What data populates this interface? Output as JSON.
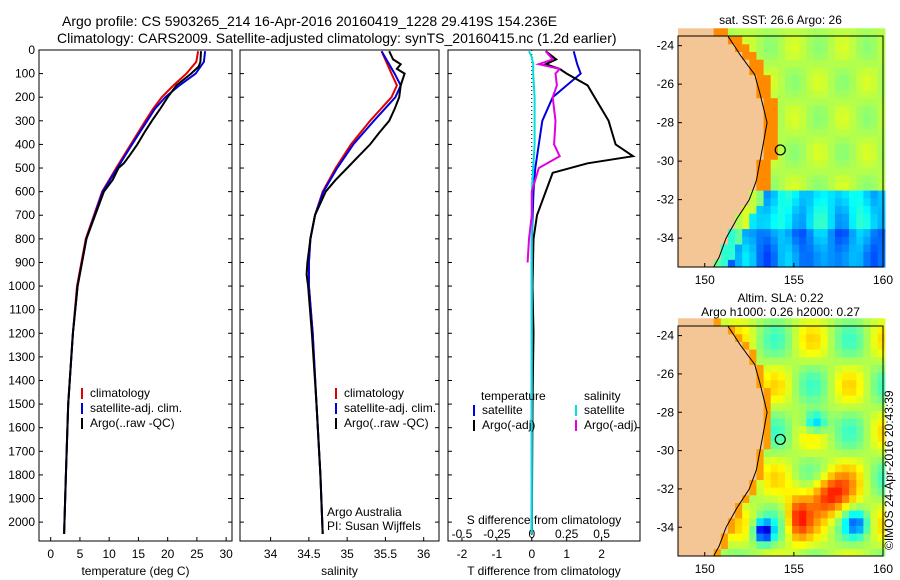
{
  "title": {
    "line1": "Argo profile: CS 5903265_214 16-Apr-2016 20160419_1228 29.419S 154.236E",
    "line2": "Climatology: CARS2009. Satellite-adjusted climatology: synTS_20160415.nc (1.2d earlier)"
  },
  "watermark": "©IMOS 24-Apr-2016 20:43:39",
  "colors": {
    "climatology": "#e00000",
    "satellite": "#0000e0",
    "argo": "#000000",
    "sal_satellite": "#00e0e0",
    "sal_argo": "#e000e0",
    "land": "#f4c595"
  },
  "chart_data": [
    {
      "type": "line",
      "name": "temperature",
      "xlabel": "temperature (deg C)",
      "ylabel": "depth",
      "xlim": [
        -2,
        31
      ],
      "ylim": [
        2080,
        0
      ],
      "xticks": [
        "0",
        "5",
        "10",
        "15",
        "20",
        "25",
        "30"
      ],
      "xtick_values": [
        0,
        5,
        10,
        15,
        20,
        25,
        30
      ],
      "yticks": [
        "0",
        "100",
        "200",
        "300",
        "400",
        "500",
        "600",
        "700",
        "800",
        "900",
        "1000",
        "1100",
        "1200",
        "1300",
        "1400",
        "1500",
        "1600",
        "1700",
        "1800",
        "1900",
        "2000"
      ],
      "ytick_values": [
        0,
        100,
        200,
        300,
        400,
        500,
        600,
        700,
        800,
        900,
        1000,
        1100,
        1200,
        1300,
        1400,
        1500,
        1600,
        1700,
        1800,
        1900,
        2000
      ],
      "legend": [
        "climatology",
        "satellite-adj. clim.",
        "Argo(..raw -QC)"
      ],
      "series": [
        {
          "name": "climatology",
          "color": "#e00000",
          "depth": [
            5,
            50,
            100,
            150,
            200,
            250,
            300,
            400,
            500,
            600,
            800,
            1000,
            1200,
            1500,
            1800,
            2050
          ],
          "values": [
            25.2,
            24.9,
            23.2,
            21.0,
            19.0,
            17.5,
            16.2,
            13.7,
            11.2,
            8.8,
            6.0,
            4.5,
            3.8,
            3.0,
            2.6,
            2.3
          ]
        },
        {
          "name": "satellite-adj. clim.",
          "color": "#0000e0",
          "depth": [
            5,
            50,
            100,
            150,
            200,
            250,
            300,
            400,
            500,
            600,
            800,
            1000,
            1200,
            1500,
            1800,
            2050
          ],
          "values": [
            26.4,
            26.2,
            24.8,
            22.0,
            19.6,
            17.8,
            16.5,
            13.9,
            11.4,
            8.9,
            6.1,
            4.6,
            3.8,
            3.0,
            2.6,
            2.3
          ]
        },
        {
          "name": "Argo(..raw -QC)",
          "color": "#000000",
          "depth": [
            5,
            50,
            70,
            100,
            150,
            200,
            250,
            300,
            350,
            400,
            450,
            480,
            500,
            550,
            600,
            800,
            1000,
            1200,
            1500,
            1800,
            2050
          ],
          "values": [
            25.7,
            25.6,
            25.3,
            24.0,
            21.5,
            20.0,
            18.7,
            17.3,
            16.0,
            14.8,
            13.4,
            12.5,
            11.6,
            10.6,
            9.1,
            6.1,
            4.6,
            3.8,
            3.0,
            2.6,
            2.3
          ]
        }
      ]
    },
    {
      "type": "line",
      "name": "salinity",
      "xlabel": "salinity",
      "xlim": [
        33.6,
        36.2
      ],
      "ylim": [
        2080,
        0
      ],
      "xticks": [
        "34",
        "34.5",
        "35",
        "35.5",
        "36"
      ],
      "xtick_values": [
        34,
        34.5,
        35,
        35.5,
        36
      ],
      "legend": [
        "climatology",
        "satellite-adj. clim.",
        "Argo(..raw -QC)"
      ],
      "annotation": [
        "Argo Australia",
        "PI: Susan Wijffels"
      ],
      "series": [
        {
          "name": "climatology",
          "color": "#e00000",
          "depth": [
            5,
            100,
            150,
            200,
            300,
            400,
            500,
            600,
            700,
            800,
            900,
            1000,
            1200,
            1500,
            1800,
            2050
          ],
          "values": [
            35.45,
            35.58,
            35.65,
            35.58,
            35.3,
            35.05,
            34.85,
            34.68,
            34.58,
            34.52,
            34.5,
            34.5,
            34.55,
            34.6,
            34.65,
            34.68
          ]
        },
        {
          "name": "satellite-adj. clim.",
          "color": "#0000e0",
          "depth": [
            5,
            100,
            150,
            200,
            300,
            400,
            500,
            600,
            700,
            800,
            900,
            1000,
            1200,
            1500,
            1800,
            2050
          ],
          "values": [
            35.45,
            35.62,
            35.7,
            35.63,
            35.35,
            35.08,
            34.87,
            34.69,
            34.58,
            34.52,
            34.5,
            34.5,
            34.55,
            34.6,
            34.65,
            34.68
          ]
        },
        {
          "name": "Argo(..raw -QC)",
          "color": "#000000",
          "depth": [
            5,
            40,
            60,
            80,
            100,
            150,
            200,
            250,
            300,
            350,
            400,
            450,
            500,
            550,
            600,
            700,
            800,
            900,
            950,
            1000,
            1200,
            1500,
            1800,
            2050
          ],
          "values": [
            35.55,
            35.6,
            35.7,
            35.65,
            35.75,
            35.7,
            35.68,
            35.62,
            35.55,
            35.42,
            35.3,
            35.15,
            35.0,
            34.85,
            34.72,
            34.58,
            34.52,
            34.48,
            34.47,
            34.49,
            34.54,
            34.6,
            34.65,
            34.68
          ]
        }
      ]
    },
    {
      "type": "line",
      "name": "differences",
      "xlabel": "T difference from climatology",
      "top_xlabel": "S difference from climatology",
      "xlim": [
        -2.4,
        3.1
      ],
      "ylim": [
        2080,
        0
      ],
      "xticks": [
        "-2",
        "-1",
        "0",
        "1",
        "2"
      ],
      "xtick_values": [
        -2,
        -1,
        0,
        1,
        2
      ],
      "top_xticks": [
        "-0.5",
        "-0.25",
        "0",
        "0.25",
        "0.5"
      ],
      "top_xtick_values": [
        -0.5,
        -0.25,
        0,
        0.25,
        0.5
      ],
      "legend_temperature_title": "temperature",
      "legend_salinity_title": "salinity",
      "legend": {
        "t_satellite": "satellite",
        "t_argo": "Argo(-adj)",
        "s_satellite": "satellite",
        "s_argo": "Argo(-adj)"
      },
      "series": [
        {
          "name": "T satellite",
          "color": "#0000e0",
          "depth": [
            5,
            60,
            100,
            150,
            200,
            300,
            400,
            500,
            600,
            800,
            1000,
            1500,
            2050
          ],
          "values": [
            1.2,
            1.3,
            1.4,
            1.0,
            0.6,
            0.3,
            0.2,
            0.1,
            0.05,
            0.0,
            0.0,
            0.0,
            0.0
          ]
        },
        {
          "name": "T Argo(-adj)",
          "color": "#000000",
          "depth": [
            5,
            40,
            60,
            80,
            100,
            150,
            200,
            250,
            300,
            350,
            400,
            420,
            450,
            480,
            520,
            600,
            700,
            800,
            1000,
            1200,
            1500,
            2050
          ],
          "values": [
            0.4,
            0.7,
            0.4,
            0.8,
            1.0,
            1.6,
            1.8,
            2.0,
            2.2,
            2.3,
            2.4,
            2.6,
            2.9,
            1.6,
            0.6,
            0.4,
            0.15,
            0.05,
            0.02,
            0.05,
            0.02,
            0.0
          ]
        },
        {
          "name": "S satellite",
          "color": "#00e0e0",
          "depth": [
            5,
            30,
            60,
            100,
            200,
            400,
            600,
            1000,
            1500,
            2050
          ],
          "values": [
            -0.02,
            0.0,
            0.01,
            0.01,
            0.02,
            0.02,
            0.0,
            0.0,
            0.0,
            0.0
          ]
        },
        {
          "name": "S Argo(-adj)",
          "color": "#e000e0",
          "depth": [
            5,
            40,
            60,
            80,
            100,
            150,
            200,
            300,
            400,
            450,
            500,
            600,
            700,
            800,
            900
          ],
          "values": [
            0.1,
            0.15,
            0.05,
            0.2,
            0.17,
            0.18,
            0.15,
            0.17,
            0.16,
            0.2,
            0.05,
            0.0,
            0.0,
            -0.02,
            -0.03
          ]
        }
      ]
    },
    {
      "type": "heatmap",
      "name": "sst_map",
      "title": "sat. SST: 26.6 Argo: 26",
      "xlim": [
        148.5,
        160
      ],
      "ylim": [
        -35.5,
        -23.5
      ],
      "xticks": [
        "150",
        "155",
        "160"
      ],
      "xtick_values": [
        150,
        155,
        160
      ],
      "yticks": [
        "-24",
        "-26",
        "-28",
        "-30",
        "-32",
        "-34"
      ],
      "ytick_values": [
        -24,
        -26,
        -28,
        -30,
        -32,
        -34
      ],
      "argo_position": [
        154.236,
        -29.419
      ]
    },
    {
      "type": "heatmap",
      "name": "sla_map",
      "title": "Altim. SLA: 0.22",
      "subtitle": "Argo h1000: 0.26 h2000: 0.27",
      "xlim": [
        148.5,
        160
      ],
      "ylim": [
        -35.5,
        -23.5
      ],
      "xticks": [
        "150",
        "155",
        "160"
      ],
      "xtick_values": [
        150,
        155,
        160
      ],
      "yticks": [
        "-24",
        "-26",
        "-28",
        "-30",
        "-32",
        "-34"
      ],
      "ytick_values": [
        -24,
        -26,
        -28,
        -30,
        -32,
        -34
      ],
      "argo_position": [
        154.236,
        -29.419
      ]
    }
  ]
}
